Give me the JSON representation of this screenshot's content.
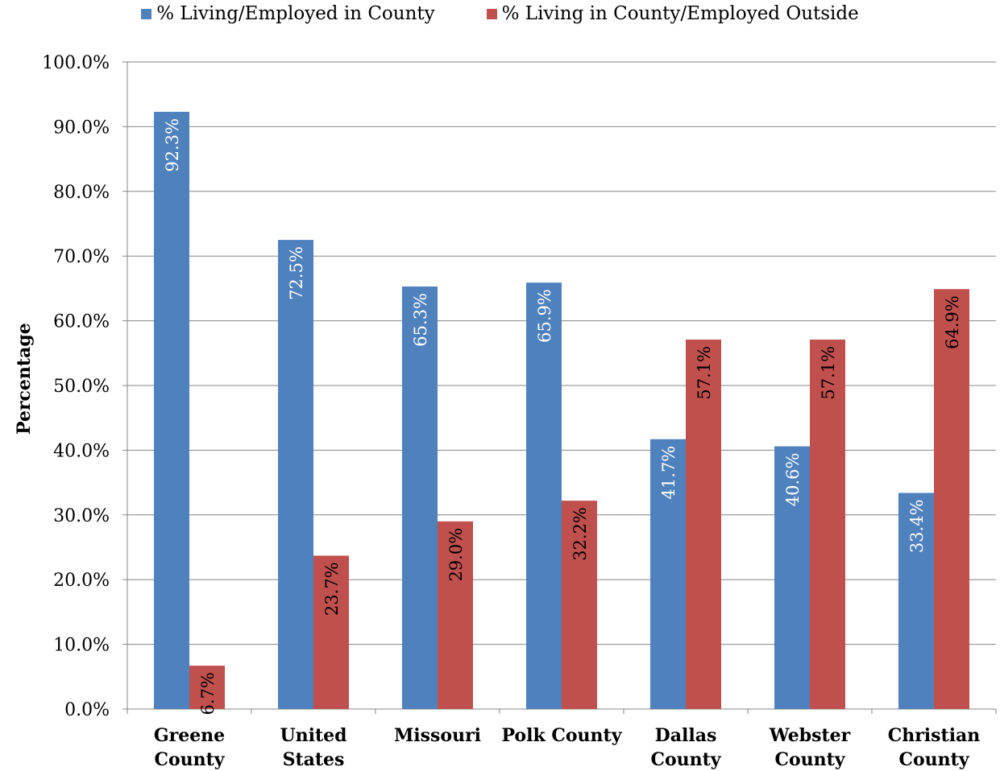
{
  "chart_data": {
    "type": "bar",
    "title": "",
    "xlabel": "",
    "ylabel": "Percentage",
    "ylim": [
      0,
      100
    ],
    "ytick_labels": [
      "0.0%",
      "10.0%",
      "20.0%",
      "30.0%",
      "40.0%",
      "50.0%",
      "60.0%",
      "70.0%",
      "80.0%",
      "90.0%",
      "100.0%"
    ],
    "categories": [
      [
        "Greene",
        "County"
      ],
      [
        "United",
        "States"
      ],
      [
        "Missouri"
      ],
      [
        "Polk County"
      ],
      [
        "Dallas",
        "County"
      ],
      [
        "Webster",
        "County"
      ],
      [
        "Christian",
        "County"
      ]
    ],
    "legend_position": "top",
    "grid": true,
    "series": [
      {
        "name": "% Living/Employed in County",
        "color": "#4F81BD",
        "label_color": "#ffffff",
        "values": [
          92.3,
          72.5,
          65.3,
          65.9,
          41.7,
          40.6,
          33.4
        ],
        "labels": [
          "92.3%",
          "72.5%",
          "65.3%",
          "65.9%",
          "41.7%",
          "40.6%",
          "33.4%"
        ]
      },
      {
        "name": "% Living in County/Employed Outside",
        "color": "#C0504D",
        "label_color": "#000000",
        "values": [
          6.7,
          23.7,
          29.0,
          32.2,
          57.1,
          57.1,
          64.9
        ],
        "labels": [
          "6.7%",
          "23.7%",
          "29.0%",
          "32.2%",
          "57.1%",
          "57.1%",
          "64.9%"
        ]
      }
    ]
  }
}
